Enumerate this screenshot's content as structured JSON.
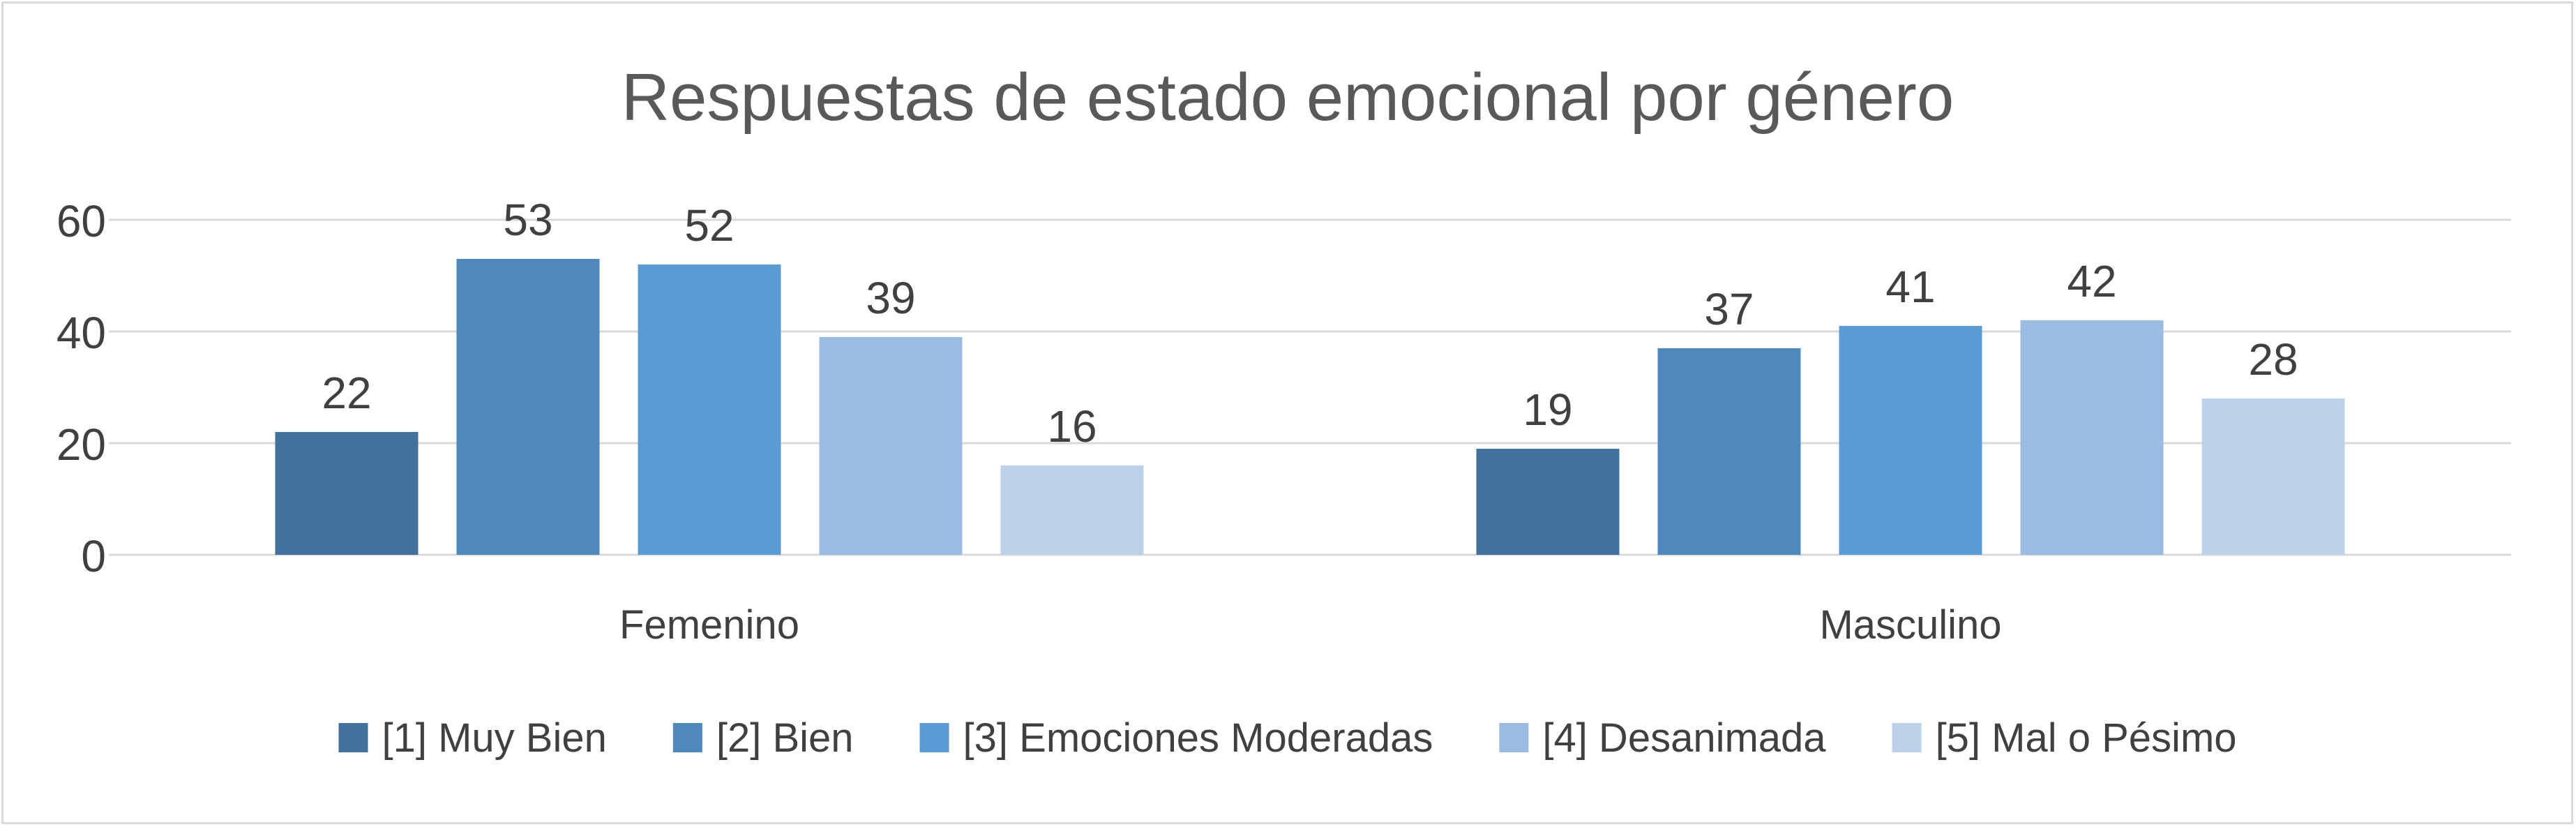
{
  "chart_data": {
    "type": "bar",
    "title": "Respuestas de estado emocional por género",
    "xlabel": "",
    "ylabel": "",
    "categories": [
      "Femenino",
      "Masculino"
    ],
    "series": [
      {
        "name": "[1] Muy Bien",
        "values": [
          22,
          19
        ],
        "color": "#41719c"
      },
      {
        "name": "[2] Bien",
        "values": [
          53,
          37
        ],
        "color": "#4f88bd"
      },
      {
        "name": "[3] Emociones Moderadas",
        "values": [
          52,
          41
        ],
        "color": "#5b9bd5"
      },
      {
        "name": "[4] Desanimada",
        "values": [
          39,
          42
        ],
        "color": "#9cbbe0"
      },
      {
        "name": "[5] Mal o Pésimo",
        "values": [
          16,
          28
        ],
        "color": "#bdd1ea"
      }
    ],
    "ylim": [
      0,
      60
    ],
    "yticks": [
      0,
      20,
      40,
      60
    ],
    "grid": true,
    "legend_position": "bottom",
    "data_labels": true
  },
  "colors": {
    "text": "#404040",
    "title": "#595959",
    "gridline": "#d9d9d9",
    "border": "#d9d9d9"
  }
}
